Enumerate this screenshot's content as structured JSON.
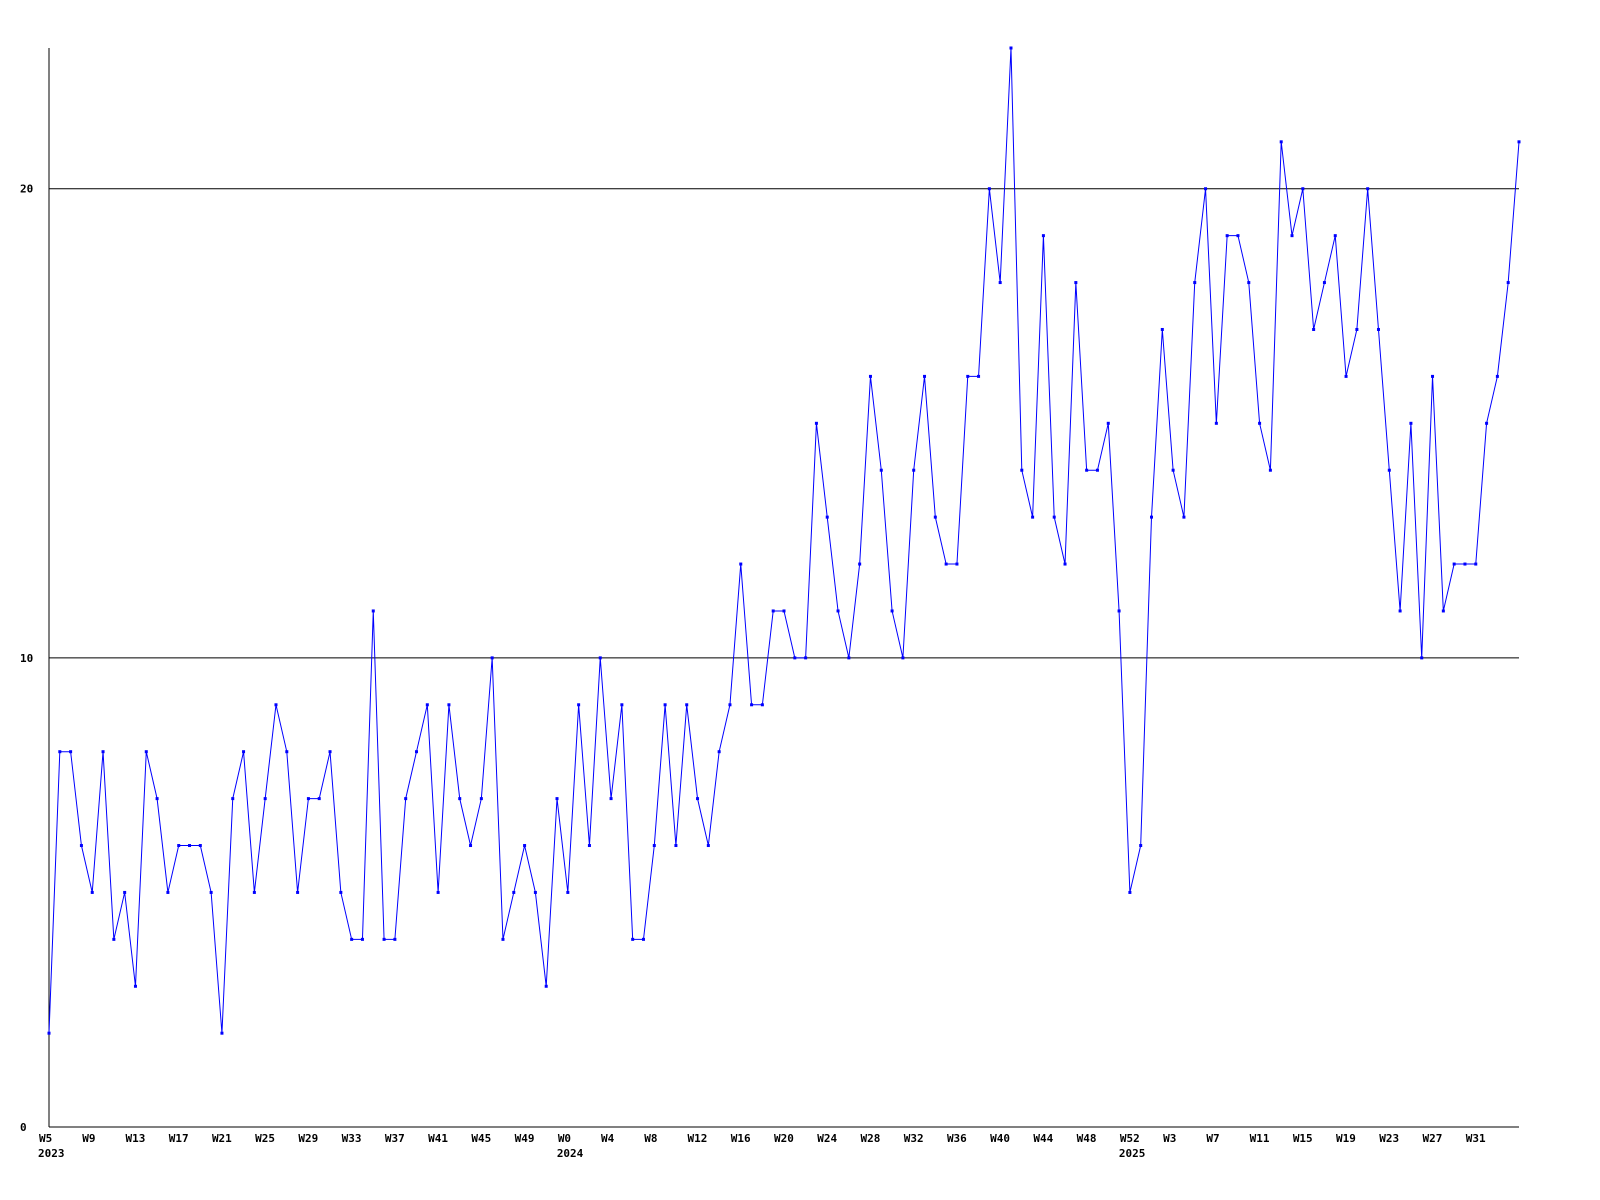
{
  "chart_data": {
    "type": "line",
    "color": "#0000ff",
    "grid": true,
    "ylim": [
      0,
      23
    ],
    "yticks": [
      0,
      10,
      20
    ],
    "categories": [
      "W5",
      null,
      null,
      null,
      "W9",
      null,
      null,
      null,
      "W13",
      null,
      null,
      null,
      "W17",
      null,
      null,
      null,
      "W21",
      null,
      null,
      null,
      "W25",
      null,
      null,
      null,
      "W29",
      null,
      null,
      null,
      "W33",
      null,
      null,
      null,
      "W37",
      null,
      null,
      null,
      "W41",
      null,
      null,
      null,
      "W45",
      null,
      null,
      null,
      "W49",
      null,
      null,
      null,
      "W0",
      null,
      null,
      null,
      "W4",
      null,
      null,
      null,
      "W8",
      null,
      null,
      null,
      "W12",
      null,
      null,
      null,
      "W16",
      null,
      null,
      null,
      "W20",
      null,
      null,
      null,
      "W24",
      null,
      null,
      null,
      "W28",
      null,
      null,
      null,
      "W32",
      null,
      null,
      null,
      "W36",
      null,
      null,
      null,
      "W40",
      null,
      null,
      null,
      "W44",
      null,
      null,
      null,
      "W48",
      null,
      null,
      null,
      "W52",
      null,
      null,
      null,
      "W3",
      null,
      null,
      null,
      "W7",
      null,
      null,
      null,
      "W11",
      null,
      null,
      null,
      "W15",
      null,
      null,
      null,
      "W19",
      null,
      null,
      null,
      "W23",
      null,
      null,
      null,
      "W27",
      null,
      null,
      null,
      "W31",
      null,
      null,
      null,
      null
    ],
    "year_labels": [
      "2023",
      null,
      null,
      null,
      null,
      null,
      null,
      null,
      null,
      null,
      null,
      null,
      null,
      null,
      null,
      null,
      null,
      null,
      null,
      null,
      null,
      null,
      null,
      null,
      null,
      null,
      null,
      null,
      null,
      null,
      null,
      null,
      null,
      null,
      null,
      null,
      null,
      null,
      null,
      null,
      null,
      null,
      null,
      null,
      null,
      null,
      null,
      null,
      "2024",
      null,
      null,
      null,
      null,
      null,
      null,
      null,
      null,
      null,
      null,
      null,
      null,
      null,
      null,
      null,
      null,
      null,
      null,
      null,
      null,
      null,
      null,
      null,
      null,
      null,
      null,
      null,
      null,
      null,
      null,
      null,
      null,
      null,
      null,
      null,
      null,
      null,
      null,
      null,
      null,
      null,
      null,
      null,
      null,
      null,
      null,
      null,
      null,
      null,
      null,
      null,
      "2025",
      null,
      null,
      null,
      null,
      null,
      null,
      null,
      null,
      null,
      null,
      null,
      null,
      null,
      null,
      null,
      null,
      null,
      null,
      null,
      null,
      null,
      null,
      null,
      null,
      null,
      null,
      null,
      null,
      null,
      null,
      null,
      null,
      null,
      null,
      null
    ],
    "values": [
      2,
      8,
      8,
      6,
      5,
      8,
      4,
      5,
      3,
      8,
      7,
      5,
      6,
      6,
      6,
      5,
      2,
      7,
      8,
      5,
      7,
      9,
      8,
      5,
      7,
      7,
      8,
      5,
      4,
      4,
      11,
      4,
      4,
      7,
      8,
      9,
      5,
      9,
      7,
      6,
      7,
      10,
      4,
      5,
      6,
      5,
      3,
      7,
      5,
      9,
      6,
      10,
      7,
      9,
      4,
      4,
      6,
      9,
      6,
      9,
      7,
      6,
      8,
      9,
      12,
      9,
      9,
      11,
      11,
      10,
      10,
      15,
      13,
      11,
      10,
      12,
      16,
      14,
      11,
      10,
      14,
      16,
      13,
      12,
      12,
      16,
      16,
      20,
      18,
      23,
      14,
      13,
      19,
      13,
      12,
      18,
      14,
      14,
      15,
      11,
      5,
      6,
      13,
      17,
      14,
      13,
      18,
      20,
      15,
      19,
      19,
      18,
      15,
      14,
      21,
      19,
      20,
      17,
      18,
      19,
      16,
      17,
      20,
      17,
      14,
      11,
      15,
      10,
      16,
      11,
      12,
      12,
      12,
      15,
      16,
      18,
      21
    ]
  }
}
